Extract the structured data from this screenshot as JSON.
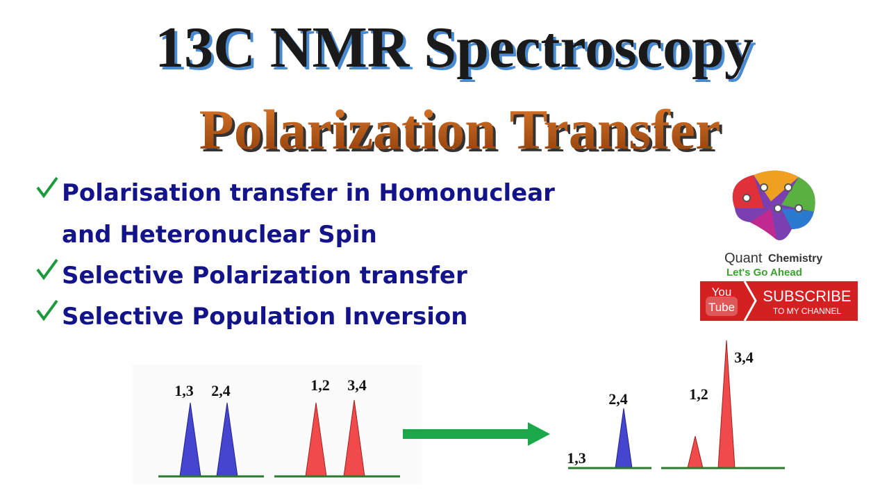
{
  "header": {
    "title": "13C NMR Spectroscopy",
    "subtitle": "Polarization Transfer"
  },
  "bullets": [
    [
      "Polarisation transfer in Homonuclear",
      "and Heteronuclear Spin"
    ],
    [
      "Selective Polarization transfer"
    ],
    [
      "Selective Population Inversion"
    ]
  ],
  "logo": {
    "name_light": "Quant",
    "name_bold": "Chemistry",
    "tagline": "Let's Go Ahead"
  },
  "subscribe": {
    "you": "You",
    "tube": "Tube",
    "main": "SUBSCRIBE",
    "sub": "TO MY CHANNEL"
  },
  "spectra": {
    "before": {
      "blue": [
        "1,3",
        "2,4"
      ],
      "red": [
        "1,2",
        "3,4"
      ]
    },
    "after": {
      "blue": [
        "1,3",
        "2,4"
      ],
      "red": [
        "1,2",
        "3,4"
      ]
    }
  }
}
